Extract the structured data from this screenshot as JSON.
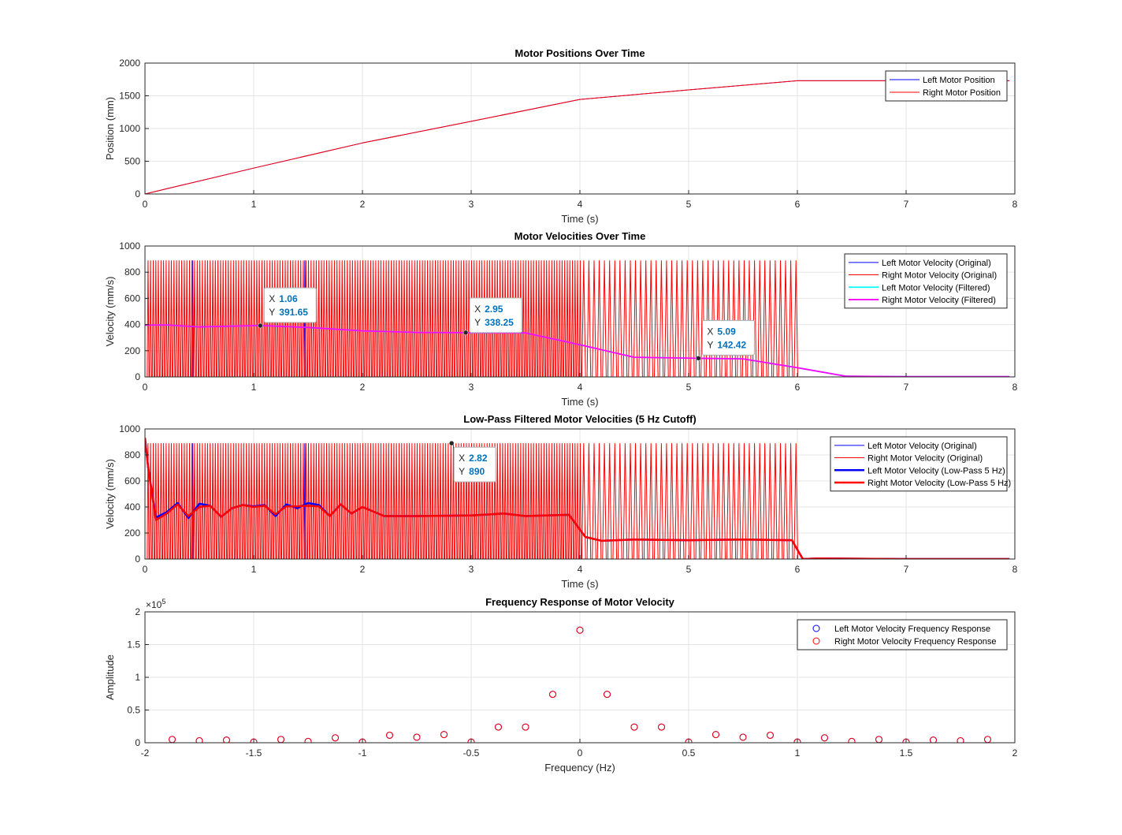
{
  "colors": {
    "blue": "#0000ff",
    "red": "#ff0000",
    "cyan": "#00ffff",
    "magenta": "#ff00ff",
    "tip_value": "#0072bd",
    "grid": "#e6e6e6",
    "axis": "#262626"
  },
  "chart_data": [
    {
      "type": "line",
      "title": "Motor Positions Over Time",
      "xlabel": "Time (s)",
      "ylabel": "Position (mm)",
      "xlim": [
        0,
        8
      ],
      "ylim": [
        0,
        2000
      ],
      "xticks": [
        0,
        1,
        2,
        3,
        4,
        5,
        6,
        7,
        8
      ],
      "yticks": [
        0,
        500,
        1000,
        1500,
        2000
      ],
      "grid": true,
      "legend_position": "top-right",
      "series": [
        {
          "name": "Left Motor Position",
          "color": "blue",
          "x": [
            0,
            0.2,
            1,
            2,
            3,
            4,
            5,
            6,
            7,
            7.95
          ],
          "y": [
            0,
            80,
            395,
            780,
            1110,
            1445,
            1590,
            1730,
            1730,
            1730
          ]
        },
        {
          "name": "Right Motor Position",
          "color": "red",
          "x": [
            0,
            0.2,
            1,
            2,
            3,
            4,
            5,
            6,
            7,
            7.95
          ],
          "y": [
            0,
            80,
            395,
            780,
            1110,
            1445,
            1590,
            1730,
            1730,
            1730
          ]
        }
      ]
    },
    {
      "type": "line",
      "title": "Motor Velocities Over Time",
      "xlabel": "Time (s)",
      "ylabel": "Velocity (mm/s)",
      "xlim": [
        0,
        8
      ],
      "ylim": [
        0,
        1000
      ],
      "xticks": [
        0,
        1,
        2,
        3,
        4,
        5,
        6,
        7,
        8
      ],
      "yticks": [
        0,
        200,
        400,
        600,
        800,
        1000
      ],
      "grid": true,
      "legend_position": "top-right",
      "series": [
        {
          "name": "Left Motor Velocity (Original)",
          "color": "blue",
          "pattern": "spikes",
          "peak": 890,
          "x": [
            0,
            6
          ],
          "y": [
            0,
            890
          ]
        },
        {
          "name": "Right Motor Velocity (Original)",
          "color": "red",
          "pattern": "spikes",
          "peak": 890,
          "x": [
            0,
            6
          ],
          "y": [
            0,
            890
          ]
        },
        {
          "name": "Left Motor Velocity (Filtered)",
          "color": "cyan",
          "x": [
            0,
            0.2,
            0.5,
            1.06,
            1.5,
            2,
            2.5,
            2.95,
            3.5,
            4,
            4.5,
            5.09,
            5.5,
            6,
            6.45,
            7,
            7.95
          ],
          "y": [
            395,
            397,
            382,
            392,
            378,
            352,
            340,
            338,
            336,
            245,
            150,
            142,
            138,
            70,
            5,
            2,
            2
          ]
        },
        {
          "name": "Right Motor Velocity (Filtered)",
          "color": "magenta",
          "x": [
            0,
            0.2,
            0.5,
            1.06,
            1.5,
            2,
            2.5,
            2.95,
            3.5,
            4,
            4.5,
            5.09,
            5.5,
            6,
            6.45,
            7,
            7.95
          ],
          "y": [
            395,
            397,
            382,
            392,
            378,
            352,
            340,
            338,
            336,
            245,
            150,
            142,
            138,
            70,
            5,
            2,
            2
          ]
        }
      ],
      "annotations": [
        {
          "x_label": "X",
          "x_value": "1.06",
          "y_label": "Y",
          "y_value": "391.65",
          "x": 1.06,
          "y": 391.65
        },
        {
          "x_label": "X",
          "x_value": "2.95",
          "y_label": "Y",
          "y_value": "338.25",
          "x": 2.95,
          "y": 338.25
        },
        {
          "x_label": "X",
          "x_value": "5.09",
          "y_label": "Y",
          "y_value": "142.42",
          "x": 5.09,
          "y": 142.42
        }
      ]
    },
    {
      "type": "line",
      "title": "Low-Pass Filtered Motor Velocities (5 Hz Cutoff)",
      "xlabel": "Time (s)",
      "ylabel": "Velocity (mm/s)",
      "xlim": [
        0,
        8
      ],
      "ylim": [
        0,
        1000
      ],
      "xticks": [
        0,
        1,
        2,
        3,
        4,
        5,
        6,
        7,
        8
      ],
      "yticks": [
        0,
        200,
        400,
        600,
        800,
        1000
      ],
      "grid": true,
      "legend_position": "top-right",
      "series": [
        {
          "name": "Left Motor Velocity (Original)",
          "color": "blue",
          "pattern": "spikes",
          "peak": 890,
          "x": [
            0,
            6
          ],
          "y": [
            0,
            890
          ]
        },
        {
          "name": "Right Motor Velocity (Original)",
          "color": "red",
          "pattern": "spikes",
          "peak": 890,
          "x": [
            0,
            6
          ],
          "y": [
            0,
            890
          ]
        },
        {
          "name": "Left Motor Velocity (Low-Pass 5 Hz)",
          "color": "blue",
          "x": [
            0,
            0.03,
            0.1,
            0.2,
            0.3,
            0.4,
            0.5,
            0.6,
            0.7,
            0.8,
            0.9,
            1.0,
            1.1,
            1.2,
            1.3,
            1.4,
            1.5,
            1.6,
            1.7,
            1.8,
            1.9,
            2.0,
            2.2,
            2.5,
            3.0,
            3.3,
            3.5,
            3.9,
            4.05,
            4.2,
            4.5,
            5.0,
            5.5,
            5.95,
            6.05,
            6.2,
            7.0,
            7.95
          ],
          "y": [
            930,
            700,
            320,
            360,
            430,
            315,
            425,
            410,
            325,
            390,
            415,
            405,
            415,
            330,
            420,
            390,
            430,
            415,
            330,
            420,
            350,
            400,
            330,
            330,
            335,
            350,
            330,
            340,
            170,
            140,
            150,
            145,
            150,
            145,
            0,
            5,
            0,
            0
          ]
        },
        {
          "name": "Right Motor Velocity (Low-Pass 5 Hz)",
          "color": "red",
          "x": [
            0,
            0.03,
            0.1,
            0.2,
            0.3,
            0.4,
            0.5,
            0.6,
            0.7,
            0.8,
            0.9,
            1.0,
            1.1,
            1.2,
            1.3,
            1.4,
            1.5,
            1.6,
            1.7,
            1.8,
            1.9,
            2.0,
            2.2,
            2.5,
            3.0,
            3.3,
            3.5,
            3.9,
            4.05,
            4.2,
            4.5,
            5.0,
            5.5,
            5.95,
            6.05,
            6.2,
            7.0,
            7.95
          ],
          "y": [
            930,
            700,
            300,
            350,
            420,
            330,
            400,
            410,
            325,
            390,
            415,
            400,
            410,
            345,
            405,
            405,
            410,
            405,
            330,
            420,
            350,
            400,
            330,
            330,
            335,
            350,
            330,
            340,
            170,
            140,
            150,
            145,
            150,
            145,
            0,
            5,
            0,
            0
          ]
        }
      ],
      "annotations": [
        {
          "x_label": "X",
          "x_value": "2.82",
          "y_label": "Y",
          "y_value": "890",
          "x": 2.82,
          "y": 890
        }
      ]
    },
    {
      "type": "scatter",
      "title": "Frequency Response of Motor Velocity",
      "xlabel": "Frequency (Hz)",
      "ylabel": "Amplitude",
      "exponent_label": "×10",
      "exponent_power": "5",
      "y_scale": 100000,
      "xlim": [
        -2,
        2
      ],
      "ylim": [
        0,
        200000
      ],
      "xticks": [
        -2,
        -1.5,
        -1,
        -0.5,
        0,
        0.5,
        1,
        1.5,
        2
      ],
      "xtick_labels": [
        "-2",
        "-1.5",
        "-1",
        "-0.5",
        "0",
        "0.5",
        "1",
        "1.5",
        "2"
      ],
      "yticks": [
        0,
        50000,
        100000,
        150000,
        200000
      ],
      "ytick_labels": [
        "0",
        "0.5",
        "1",
        "1.5",
        "2"
      ],
      "grid": true,
      "legend_position": "top-right",
      "series": [
        {
          "name": "Left Motor Velocity Frequency Response",
          "color": "blue",
          "marker": "circle",
          "x": [
            -1.875,
            -1.75,
            -1.625,
            -1.5,
            -1.375,
            -1.25,
            -1.125,
            -1.0,
            -0.875,
            -0.75,
            -0.625,
            -0.5,
            -0.375,
            -0.25,
            -0.125,
            0,
            0.125,
            0.25,
            0.375,
            0.5,
            0.625,
            0.75,
            0.875,
            1.0,
            1.125,
            1.25,
            1.375,
            1.5,
            1.625,
            1.75,
            1.875
          ],
          "y": [
            5000,
            3000,
            4000,
            1000,
            5000,
            2000,
            7500,
            1000,
            11500,
            8500,
            12500,
            1000,
            24000,
            24000,
            74000,
            172000,
            74000,
            24000,
            24000,
            1000,
            12500,
            8500,
            11500,
            1000,
            7500,
            2000,
            5000,
            1000,
            4000,
            3000,
            5000
          ]
        },
        {
          "name": "Right Motor Velocity Frequency Response",
          "color": "red",
          "marker": "circle",
          "x": [
            -1.875,
            -1.75,
            -1.625,
            -1.5,
            -1.375,
            -1.25,
            -1.125,
            -1.0,
            -0.875,
            -0.75,
            -0.625,
            -0.5,
            -0.375,
            -0.25,
            -0.125,
            0,
            0.125,
            0.25,
            0.375,
            0.5,
            0.625,
            0.75,
            0.875,
            1.0,
            1.125,
            1.25,
            1.375,
            1.5,
            1.625,
            1.75,
            1.875
          ],
          "y": [
            5000,
            3000,
            4000,
            1000,
            5000,
            2000,
            7500,
            1000,
            11500,
            8500,
            12500,
            1000,
            24000,
            24000,
            74000,
            172000,
            74000,
            24000,
            24000,
            1000,
            12500,
            8500,
            11500,
            1000,
            7500,
            2000,
            5000,
            1000,
            4000,
            3000,
            5000
          ]
        }
      ]
    }
  ]
}
